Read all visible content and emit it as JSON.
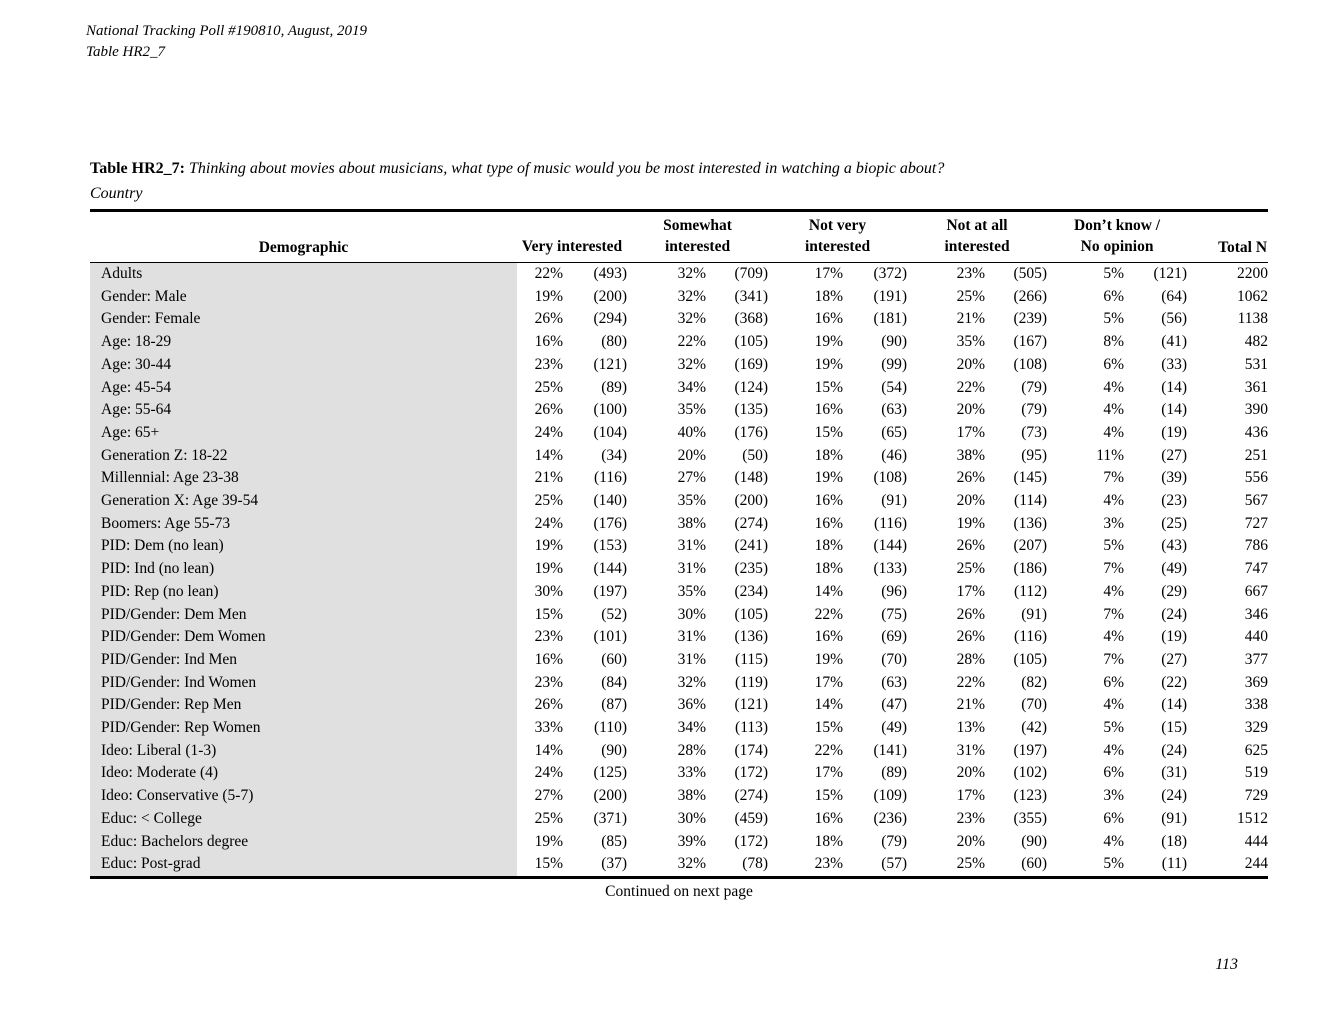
{
  "doc": {
    "header_line1": "National Tracking Poll #190810, August, 2019",
    "header_line2": "Table HR2_7",
    "page_number": "113"
  },
  "title": {
    "label": "Table HR2_7:",
    "question": "Thinking about movies about musicians, what type of music would you be most interested in watching a biopic about?",
    "subtitle": "Country"
  },
  "footer": {
    "continued": "Continued on next page"
  },
  "table": {
    "demographic_header": "Demographic",
    "group_headers": [
      {
        "line1": "",
        "line2": "Very interested"
      },
      {
        "line1": "Somewhat",
        "line2": "interested"
      },
      {
        "line1": "Not very",
        "line2": "interested"
      },
      {
        "line1": "Not at all",
        "line2": "interested"
      },
      {
        "line1": "Don’t know /",
        "line2": "No opinion"
      }
    ],
    "total_header": "Total N",
    "rows": [
      {
        "label": "Adults",
        "cells": [
          "22%",
          "(493)",
          "32%",
          "(709)",
          "17%",
          "(372)",
          "23%",
          "(505)",
          "5%",
          "(121)",
          "2200"
        ]
      },
      {
        "label": "Gender: Male",
        "cells": [
          "19%",
          "(200)",
          "32%",
          "(341)",
          "18%",
          "(191)",
          "25%",
          "(266)",
          "6%",
          "(64)",
          "1062"
        ]
      },
      {
        "label": "Gender: Female",
        "cells": [
          "26%",
          "(294)",
          "32%",
          "(368)",
          "16%",
          "(181)",
          "21%",
          "(239)",
          "5%",
          "(56)",
          "1138"
        ]
      },
      {
        "label": "Age: 18-29",
        "cells": [
          "16%",
          "(80)",
          "22%",
          "(105)",
          "19%",
          "(90)",
          "35%",
          "(167)",
          "8%",
          "(41)",
          "482"
        ]
      },
      {
        "label": "Age: 30-44",
        "cells": [
          "23%",
          "(121)",
          "32%",
          "(169)",
          "19%",
          "(99)",
          "20%",
          "(108)",
          "6%",
          "(33)",
          "531"
        ]
      },
      {
        "label": "Age: 45-54",
        "cells": [
          "25%",
          "(89)",
          "34%",
          "(124)",
          "15%",
          "(54)",
          "22%",
          "(79)",
          "4%",
          "(14)",
          "361"
        ]
      },
      {
        "label": "Age: 55-64",
        "cells": [
          "26%",
          "(100)",
          "35%",
          "(135)",
          "16%",
          "(63)",
          "20%",
          "(79)",
          "4%",
          "(14)",
          "390"
        ]
      },
      {
        "label": "Age: 65+",
        "cells": [
          "24%",
          "(104)",
          "40%",
          "(176)",
          "15%",
          "(65)",
          "17%",
          "(73)",
          "4%",
          "(19)",
          "436"
        ]
      },
      {
        "label": "Generation Z: 18-22",
        "cells": [
          "14%",
          "(34)",
          "20%",
          "(50)",
          "18%",
          "(46)",
          "38%",
          "(95)",
          "11%",
          "(27)",
          "251"
        ]
      },
      {
        "label": "Millennial: Age 23-38",
        "cells": [
          "21%",
          "(116)",
          "27%",
          "(148)",
          "19%",
          "(108)",
          "26%",
          "(145)",
          "7%",
          "(39)",
          "556"
        ]
      },
      {
        "label": "Generation X: Age 39-54",
        "cells": [
          "25%",
          "(140)",
          "35%",
          "(200)",
          "16%",
          "(91)",
          "20%",
          "(114)",
          "4%",
          "(23)",
          "567"
        ]
      },
      {
        "label": "Boomers: Age 55-73",
        "cells": [
          "24%",
          "(176)",
          "38%",
          "(274)",
          "16%",
          "(116)",
          "19%",
          "(136)",
          "3%",
          "(25)",
          "727"
        ]
      },
      {
        "label": "PID: Dem (no lean)",
        "cells": [
          "19%",
          "(153)",
          "31%",
          "(241)",
          "18%",
          "(144)",
          "26%",
          "(207)",
          "5%",
          "(43)",
          "786"
        ]
      },
      {
        "label": "PID: Ind (no lean)",
        "cells": [
          "19%",
          "(144)",
          "31%",
          "(235)",
          "18%",
          "(133)",
          "25%",
          "(186)",
          "7%",
          "(49)",
          "747"
        ]
      },
      {
        "label": "PID: Rep (no lean)",
        "cells": [
          "30%",
          "(197)",
          "35%",
          "(234)",
          "14%",
          "(96)",
          "17%",
          "(112)",
          "4%",
          "(29)",
          "667"
        ]
      },
      {
        "label": "PID/Gender: Dem Men",
        "cells": [
          "15%",
          "(52)",
          "30%",
          "(105)",
          "22%",
          "(75)",
          "26%",
          "(91)",
          "7%",
          "(24)",
          "346"
        ]
      },
      {
        "label": "PID/Gender: Dem Women",
        "cells": [
          "23%",
          "(101)",
          "31%",
          "(136)",
          "16%",
          "(69)",
          "26%",
          "(116)",
          "4%",
          "(19)",
          "440"
        ]
      },
      {
        "label": "PID/Gender: Ind Men",
        "cells": [
          "16%",
          "(60)",
          "31%",
          "(115)",
          "19%",
          "(70)",
          "28%",
          "(105)",
          "7%",
          "(27)",
          "377"
        ]
      },
      {
        "label": "PID/Gender: Ind Women",
        "cells": [
          "23%",
          "(84)",
          "32%",
          "(119)",
          "17%",
          "(63)",
          "22%",
          "(82)",
          "6%",
          "(22)",
          "369"
        ]
      },
      {
        "label": "PID/Gender: Rep Men",
        "cells": [
          "26%",
          "(87)",
          "36%",
          "(121)",
          "14%",
          "(47)",
          "21%",
          "(70)",
          "4%",
          "(14)",
          "338"
        ]
      },
      {
        "label": "PID/Gender: Rep Women",
        "cells": [
          "33%",
          "(110)",
          "34%",
          "(113)",
          "15%",
          "(49)",
          "13%",
          "(42)",
          "5%",
          "(15)",
          "329"
        ]
      },
      {
        "label": "Ideo: Liberal (1-3)",
        "cells": [
          "14%",
          "(90)",
          "28%",
          "(174)",
          "22%",
          "(141)",
          "31%",
          "(197)",
          "4%",
          "(24)",
          "625"
        ]
      },
      {
        "label": "Ideo: Moderate (4)",
        "cells": [
          "24%",
          "(125)",
          "33%",
          "(172)",
          "17%",
          "(89)",
          "20%",
          "(102)",
          "6%",
          "(31)",
          "519"
        ]
      },
      {
        "label": "Ideo: Conservative (5-7)",
        "cells": [
          "27%",
          "(200)",
          "38%",
          "(274)",
          "15%",
          "(109)",
          "17%",
          "(123)",
          "3%",
          "(24)",
          "729"
        ]
      },
      {
        "label": "Educ: < College",
        "cells": [
          "25%",
          "(371)",
          "30%",
          "(459)",
          "16%",
          "(236)",
          "23%",
          "(355)",
          "6%",
          "(91)",
          "1512"
        ]
      },
      {
        "label": "Educ: Bachelors degree",
        "cells": [
          "19%",
          "(85)",
          "39%",
          "(172)",
          "18%",
          "(79)",
          "20%",
          "(90)",
          "4%",
          "(18)",
          "444"
        ]
      },
      {
        "label": "Educ: Post-grad",
        "cells": [
          "15%",
          "(37)",
          "32%",
          "(78)",
          "23%",
          "(57)",
          "25%",
          "(60)",
          "5%",
          "(11)",
          "244"
        ]
      }
    ]
  }
}
